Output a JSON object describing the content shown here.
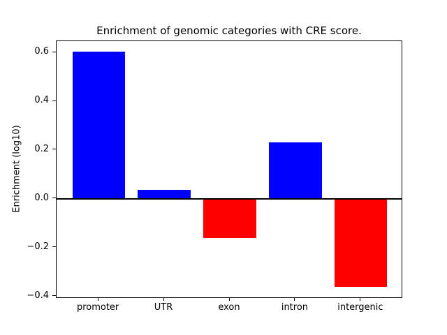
{
  "chart_data": {
    "type": "bar",
    "title": "Enrichment of genomic categories with CRE score.",
    "xlabel": "",
    "ylabel": "Enrichment (log10)",
    "categories": [
      "promoter",
      "UTR",
      "exon",
      "intron",
      "intergenic"
    ],
    "values": [
      0.603,
      0.036,
      -0.161,
      0.231,
      -0.359
    ],
    "bar_colors": [
      "#0000ff",
      "#0000ff",
      "#ff0000",
      "#0000ff",
      "#ff0000"
    ],
    "positive_color": "#0000ff",
    "negative_color": "#ff0000",
    "bar_width": 0.8,
    "xlim": [
      -0.64,
      4.64
    ],
    "ylim": [
      -0.409,
      0.646
    ],
    "yticks": [
      0.6,
      0.4,
      0.2,
      0.0,
      -0.2,
      -0.4
    ],
    "ytick_labels": [
      "0.6",
      "0.4",
      "0.2",
      "0.0",
      "−0.2",
      "−0.4"
    ],
    "zero_line": true,
    "grid": false,
    "legend": null
  }
}
